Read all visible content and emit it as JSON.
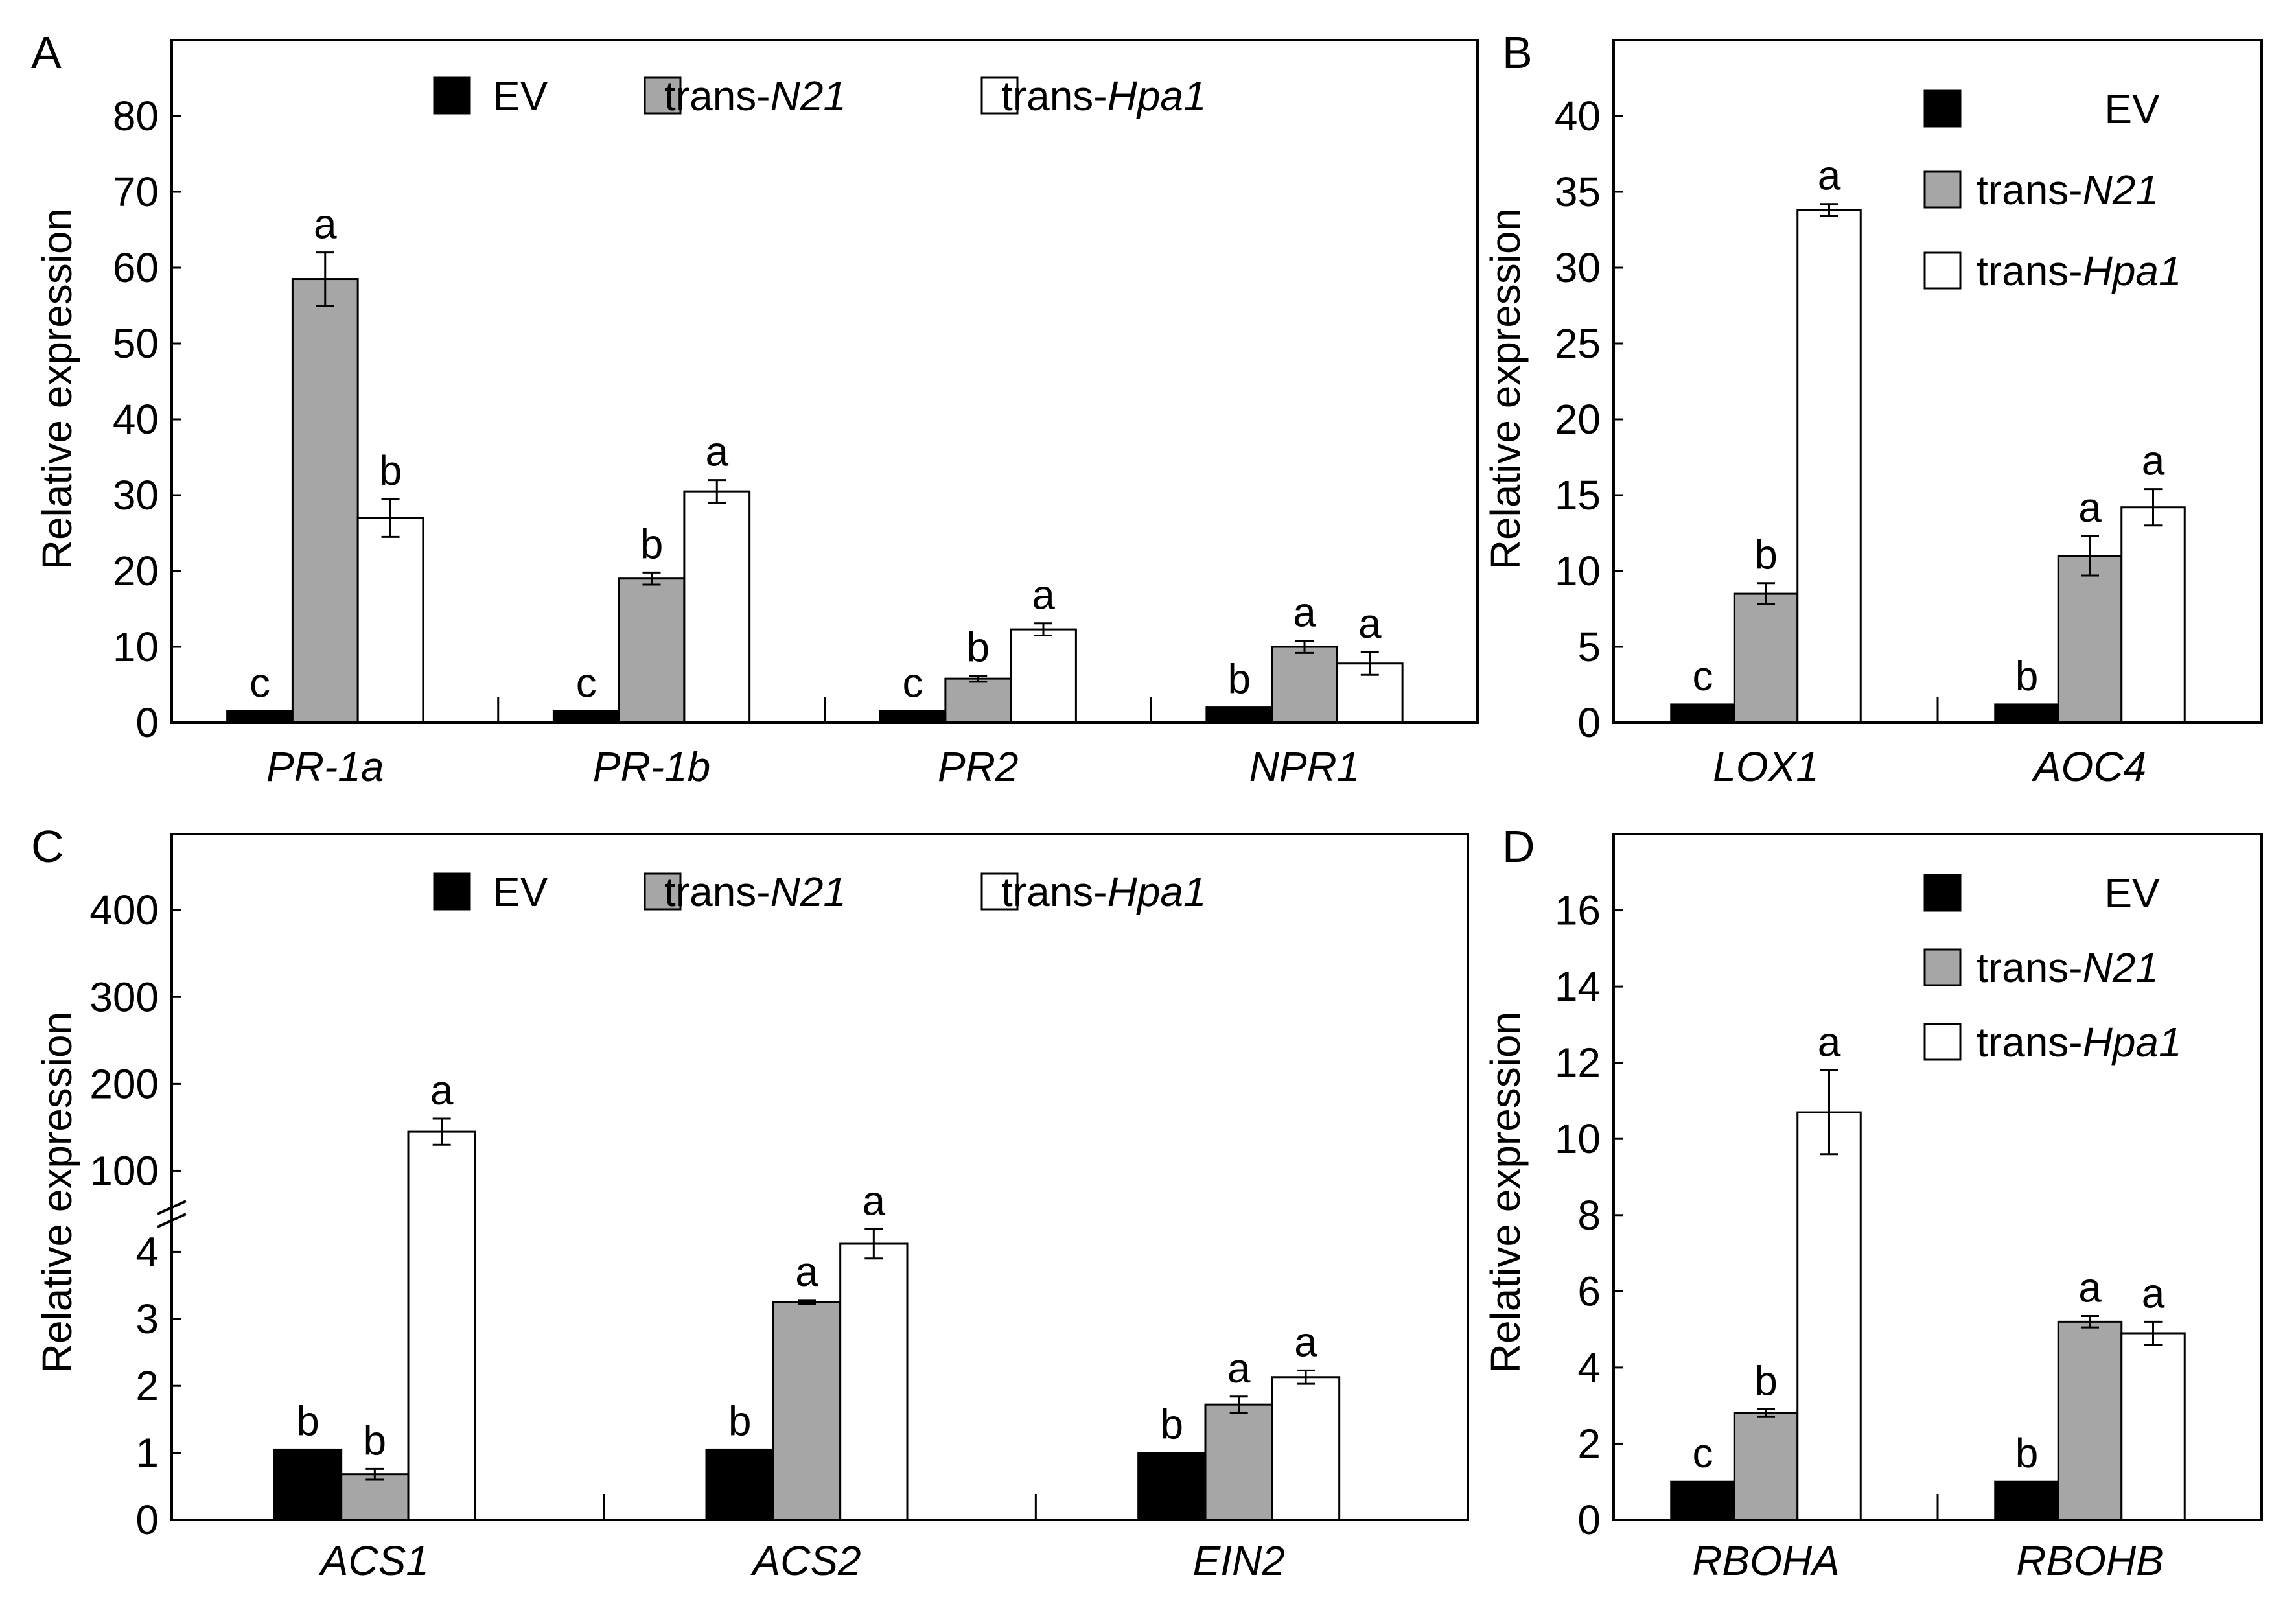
{
  "figure": {
    "colors": {
      "EV": "#000000",
      "trans-N21": "#a6a6a6",
      "trans-Hpa1": "#ffffff"
    }
  },
  "chart_data": [
    {
      "panel": "A",
      "type": "bar",
      "ylabel": "Relative expression",
      "ylim": [
        0,
        90
      ],
      "yticks": [
        0,
        10,
        20,
        30,
        40,
        50,
        60,
        70,
        80
      ],
      "legend_position": "top",
      "legend": [
        {
          "prefix": "EV",
          "italic": ""
        },
        {
          "prefix": "trans-",
          "italic": "N21"
        },
        {
          "prefix": "trans-",
          "italic": "Hpa1"
        }
      ],
      "categories": [
        "PR-1a",
        "PR-1b",
        "PR2",
        "NPR1"
      ],
      "series": [
        {
          "name": "EV",
          "values": [
            1.5,
            1.5,
            1.5,
            2.0
          ],
          "errors": [
            0,
            0,
            0,
            0
          ],
          "letters": [
            "c",
            "c",
            "c",
            "b"
          ]
        },
        {
          "name": "trans-N21",
          "values": [
            58.5,
            19.0,
            5.8,
            10.0
          ],
          "errors": [
            3.5,
            0.8,
            0.4,
            0.8
          ],
          "letters": [
            "a",
            "b",
            "b",
            "a"
          ]
        },
        {
          "name": "trans-Hpa1",
          "values": [
            27.0,
            30.5,
            12.3,
            7.8
          ],
          "errors": [
            2.5,
            1.5,
            0.8,
            1.5
          ],
          "letters": [
            "b",
            "a",
            "a",
            "a"
          ]
        }
      ]
    },
    {
      "panel": "B",
      "type": "bar",
      "ylabel": "Relative expression",
      "ylim": [
        0,
        45
      ],
      "yticks": [
        0,
        5,
        10,
        15,
        20,
        25,
        30,
        35,
        40
      ],
      "legend_position": "top-right",
      "legend": [
        {
          "prefix": "EV",
          "italic": ""
        },
        {
          "prefix": "trans-",
          "italic": "N21"
        },
        {
          "prefix": "trans-",
          "italic": "Hpa1"
        }
      ],
      "categories": [
        "LOX1",
        "AOC4"
      ],
      "series": [
        {
          "name": "EV",
          "values": [
            1.2,
            1.2
          ],
          "errors": [
            0,
            0
          ],
          "letters": [
            "c",
            "b"
          ]
        },
        {
          "name": "trans-N21",
          "values": [
            8.5,
            11.0
          ],
          "errors": [
            0.7,
            1.3
          ],
          "letters": [
            "b",
            "a"
          ]
        },
        {
          "name": "trans-Hpa1",
          "values": [
            33.8,
            14.2
          ],
          "errors": [
            0.4,
            1.2
          ],
          "letters": [
            "a",
            "a"
          ]
        }
      ]
    },
    {
      "panel": "C",
      "type": "bar",
      "ylabel": "Relative expression",
      "axis_break": true,
      "lower_ylim": [
        0,
        4.4
      ],
      "lower_yticks": [
        0,
        1,
        2,
        3,
        4
      ],
      "upper_ylim": [
        0,
        480
      ],
      "upper_yticks": [
        100,
        200,
        300,
        400
      ],
      "legend_position": "top",
      "legend": [
        {
          "prefix": "EV",
          "italic": ""
        },
        {
          "prefix": "trans-",
          "italic": "N21"
        },
        {
          "prefix": "trans-",
          "italic": "Hpa1"
        }
      ],
      "categories": [
        "ACS1",
        "ACS2",
        "EIN2"
      ],
      "series": [
        {
          "name": "EV",
          "values": [
            1.05,
            1.05,
            1.0
          ],
          "errors": [
            0,
            0,
            0
          ],
          "letters": [
            "b",
            "b",
            "b"
          ]
        },
        {
          "name": "trans-N21",
          "values": [
            0.68,
            3.25,
            1.72
          ],
          "errors": [
            0.08,
            0.03,
            0.12
          ],
          "letters": [
            "b",
            "a",
            "a"
          ]
        },
        {
          "name": "trans-Hpa1",
          "values": [
            145,
            4.12,
            2.13
          ],
          "errors": [
            15,
            0.22,
            0.1
          ],
          "letters": [
            "a",
            "a",
            "a"
          ]
        }
      ]
    },
    {
      "panel": "D",
      "type": "bar",
      "ylabel": "Relative expression",
      "ylim": [
        0,
        18
      ],
      "yticks": [
        0,
        2,
        4,
        6,
        8,
        10,
        12,
        14,
        16
      ],
      "legend_position": "top-right",
      "legend": [
        {
          "prefix": "EV",
          "italic": ""
        },
        {
          "prefix": "trans-",
          "italic": "N21"
        },
        {
          "prefix": "trans-",
          "italic": "Hpa1"
        }
      ],
      "categories": [
        "RBOHA",
        "RBOHB"
      ],
      "series": [
        {
          "name": "EV",
          "values": [
            1.0,
            1.0
          ],
          "errors": [
            0,
            0
          ],
          "letters": [
            "c",
            "b"
          ]
        },
        {
          "name": "trans-N21",
          "values": [
            2.8,
            5.2
          ],
          "errors": [
            0.1,
            0.15
          ],
          "letters": [
            "b",
            "a"
          ]
        },
        {
          "name": "trans-Hpa1",
          "values": [
            10.7,
            4.9
          ],
          "errors": [
            1.1,
            0.3
          ],
          "letters": [
            "a",
            "a"
          ]
        }
      ]
    }
  ]
}
